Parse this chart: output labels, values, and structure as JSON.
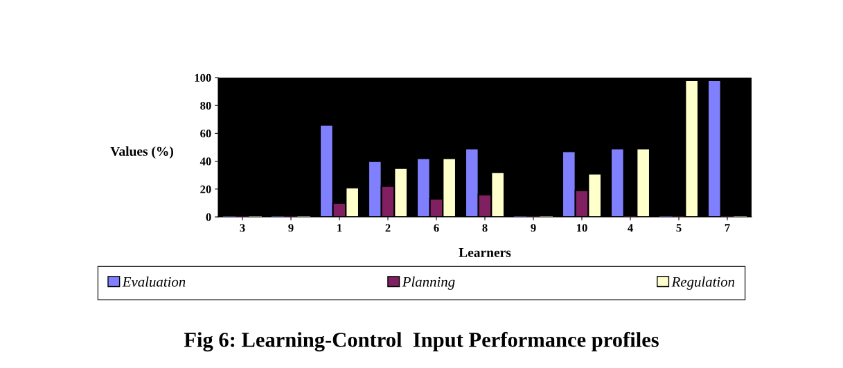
{
  "chart_data": {
    "type": "bar",
    "title": "Fig 6: Learning-Control  Input Performance profiles",
    "xlabel": "Learners",
    "ylabel": "Values (%)",
    "categories": [
      "3",
      "9",
      "1",
      "2",
      "6",
      "8",
      "9",
      "10",
      "4",
      "5",
      "7"
    ],
    "series": [
      {
        "name": "Evaluation",
        "color": "#8080ff",
        "values": [
          0,
          0,
          66,
          40,
          42,
          49,
          0,
          47,
          49,
          0,
          98
        ]
      },
      {
        "name": "Planning",
        "color": "#802060",
        "values": [
          0,
          0,
          10,
          22,
          13,
          16,
          0,
          19,
          0,
          0,
          0
        ]
      },
      {
        "name": "Regulation",
        "color": "#ffffcc",
        "values": [
          0,
          0,
          21,
          35,
          42,
          32,
          0,
          31,
          49,
          98,
          0
        ]
      }
    ],
    "ylim": [
      0,
      100
    ],
    "yticks": [
      0,
      20,
      40,
      60,
      80,
      100
    ],
    "grid": false,
    "legend": "bottom"
  }
}
